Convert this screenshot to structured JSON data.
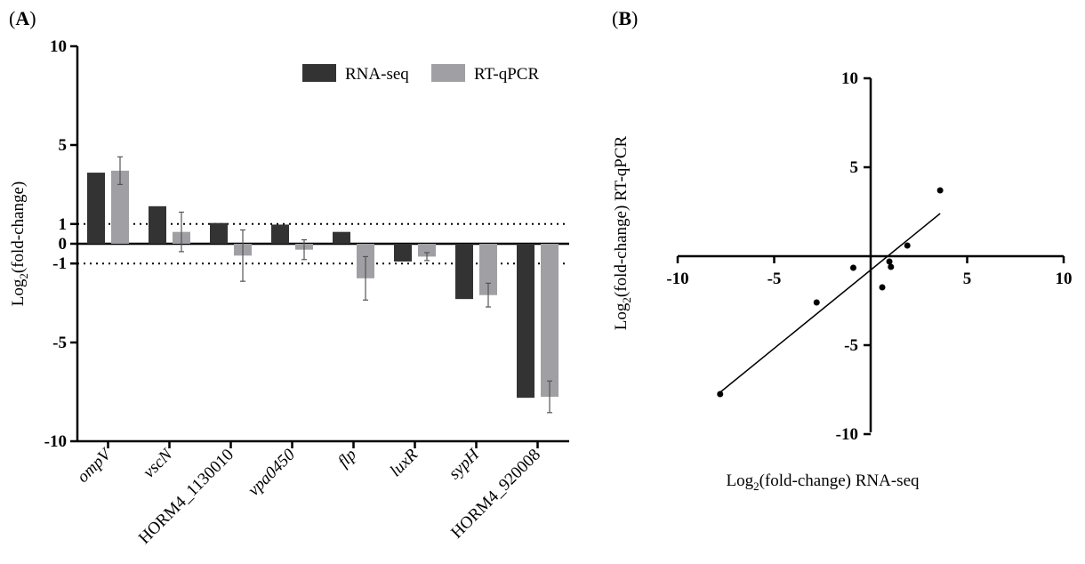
{
  "panel_a_label": "A",
  "panel_b_label": "B",
  "chart_data": [
    {
      "type": "bar",
      "panel": "A",
      "ylabel_main": "Log",
      "ylabel_sub": "2",
      "ylabel_rest": "(fold-change)",
      "ylim": [
        -10,
        10
      ],
      "yticks": [
        10,
        5,
        1,
        0,
        -1,
        -5,
        -10
      ],
      "reference_lines": [
        1,
        -1
      ],
      "categories": [
        "ompV",
        "vscN",
        "HORM4_1130010",
        "vpa0450",
        "flp",
        "luxR",
        "sypH",
        "HORM4_920008"
      ],
      "category_italic": [
        true,
        true,
        false,
        true,
        true,
        true,
        true,
        false
      ],
      "series": [
        {
          "name": "RNA-seq",
          "color": "#333333",
          "values": [
            3.6,
            1.9,
            1.05,
            0.97,
            0.6,
            -0.9,
            -2.8,
            -7.8
          ],
          "errors": null
        },
        {
          "name": "RT-qPCR",
          "color": "#a0a0a4",
          "values": [
            3.7,
            0.6,
            -0.6,
            -0.3,
            -1.75,
            -0.65,
            -2.6,
            -7.75
          ],
          "errors": [
            0.7,
            1.0,
            1.3,
            0.5,
            1.1,
            0.2,
            0.6,
            0.8
          ]
        }
      ],
      "legend_position": "top-right"
    },
    {
      "type": "scatter",
      "panel": "B",
      "xlabel_main": "Log",
      "xlabel_sub": "2",
      "xlabel_rest": "(fold-change) RNA-seq",
      "ylabel_main": "Log",
      "ylabel_sub": "2",
      "ylabel_rest": "(fold-change) RT-qPCR",
      "xlim": [
        -10,
        10
      ],
      "ylim": [
        -10,
        10
      ],
      "xticks": [
        -10,
        -5,
        5,
        10
      ],
      "yticks": [
        10,
        5,
        -5,
        -10
      ],
      "points": [
        {
          "x": -7.8,
          "y": -7.75
        },
        {
          "x": -2.8,
          "y": -2.6
        },
        {
          "x": -0.9,
          "y": -0.65
        },
        {
          "x": 0.6,
          "y": -1.75
        },
        {
          "x": 0.97,
          "y": -0.3
        },
        {
          "x": 1.05,
          "y": -0.6
        },
        {
          "x": 1.9,
          "y": 0.6
        },
        {
          "x": 3.6,
          "y": 3.7
        }
      ],
      "fit_line": {
        "x": [
          -7.8,
          3.6
        ],
        "y": [
          -7.65,
          2.4
        ]
      }
    }
  ]
}
